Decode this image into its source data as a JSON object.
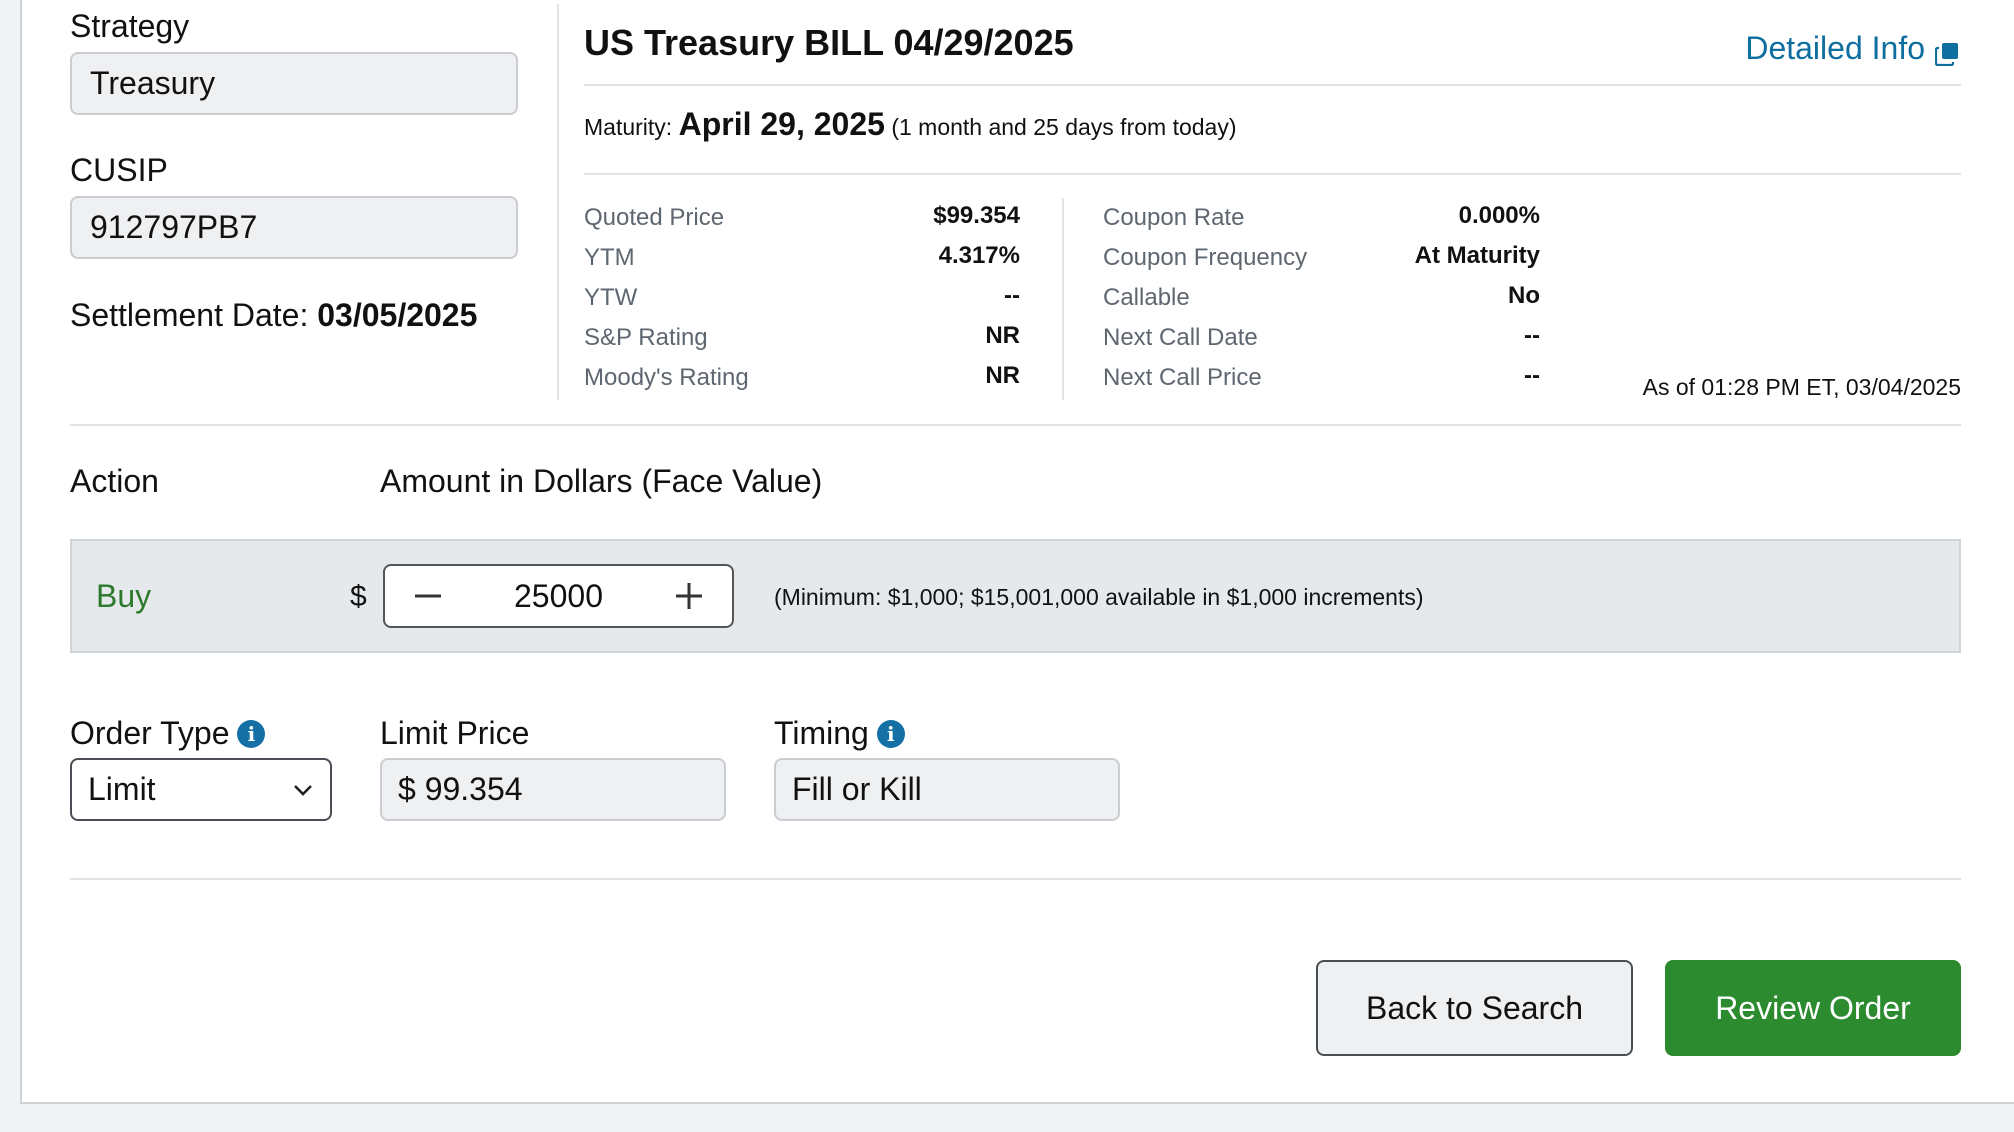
{
  "left": {
    "strategy_label": "Strategy",
    "strategy_value": "Treasury",
    "cusip_label": "CUSIP",
    "cusip_value": "912797PB7",
    "settlement_label": "Settlement Date:",
    "settlement_value": "03/05/2025"
  },
  "bond": {
    "title": "US Treasury BILL 04/29/2025",
    "detail_link": "Detailed Info",
    "maturity_label": "Maturity:",
    "maturity_date": "April 29, 2025",
    "maturity_relative": "(1 month and 25 days from today)",
    "stats_left": [
      {
        "label": "Quoted Price",
        "value": "$99.354"
      },
      {
        "label": "YTM",
        "value": "4.317%"
      },
      {
        "label": "YTW",
        "value": "--"
      },
      {
        "label": "S&P Rating",
        "value": "NR"
      },
      {
        "label": "Moody's Rating",
        "value": "NR"
      }
    ],
    "stats_right": [
      {
        "label": "Coupon Rate",
        "value": "0.000%"
      },
      {
        "label": "Coupon Frequency",
        "value": "At Maturity"
      },
      {
        "label": "Callable",
        "value": "No"
      },
      {
        "label": "Next Call Date",
        "value": "--"
      },
      {
        "label": "Next Call Price",
        "value": "--"
      }
    ],
    "as_of": "As of 01:28 PM ET, 03/04/2025"
  },
  "order": {
    "action_header": "Action",
    "amount_header": "Amount in Dollars (Face Value)",
    "action_value": "Buy",
    "currency_symbol": "$",
    "amount_value": "25000",
    "minimum_note": "(Minimum: $1,000; $15,001,000 available in $1,000 increments)",
    "order_type_label": "Order Type",
    "order_type_value": "Limit",
    "limit_price_label": "Limit Price",
    "limit_price_value": "$ 99.354",
    "timing_label": "Timing",
    "timing_value": "Fill or Kill"
  },
  "buttons": {
    "back": "Back to Search",
    "review": "Review Order"
  },
  "colors": {
    "accent_link": "#0e6e9f",
    "buy_green": "#2c7a2c",
    "primary_button": "#2c8a2f",
    "info_blue": "#1570a6"
  }
}
